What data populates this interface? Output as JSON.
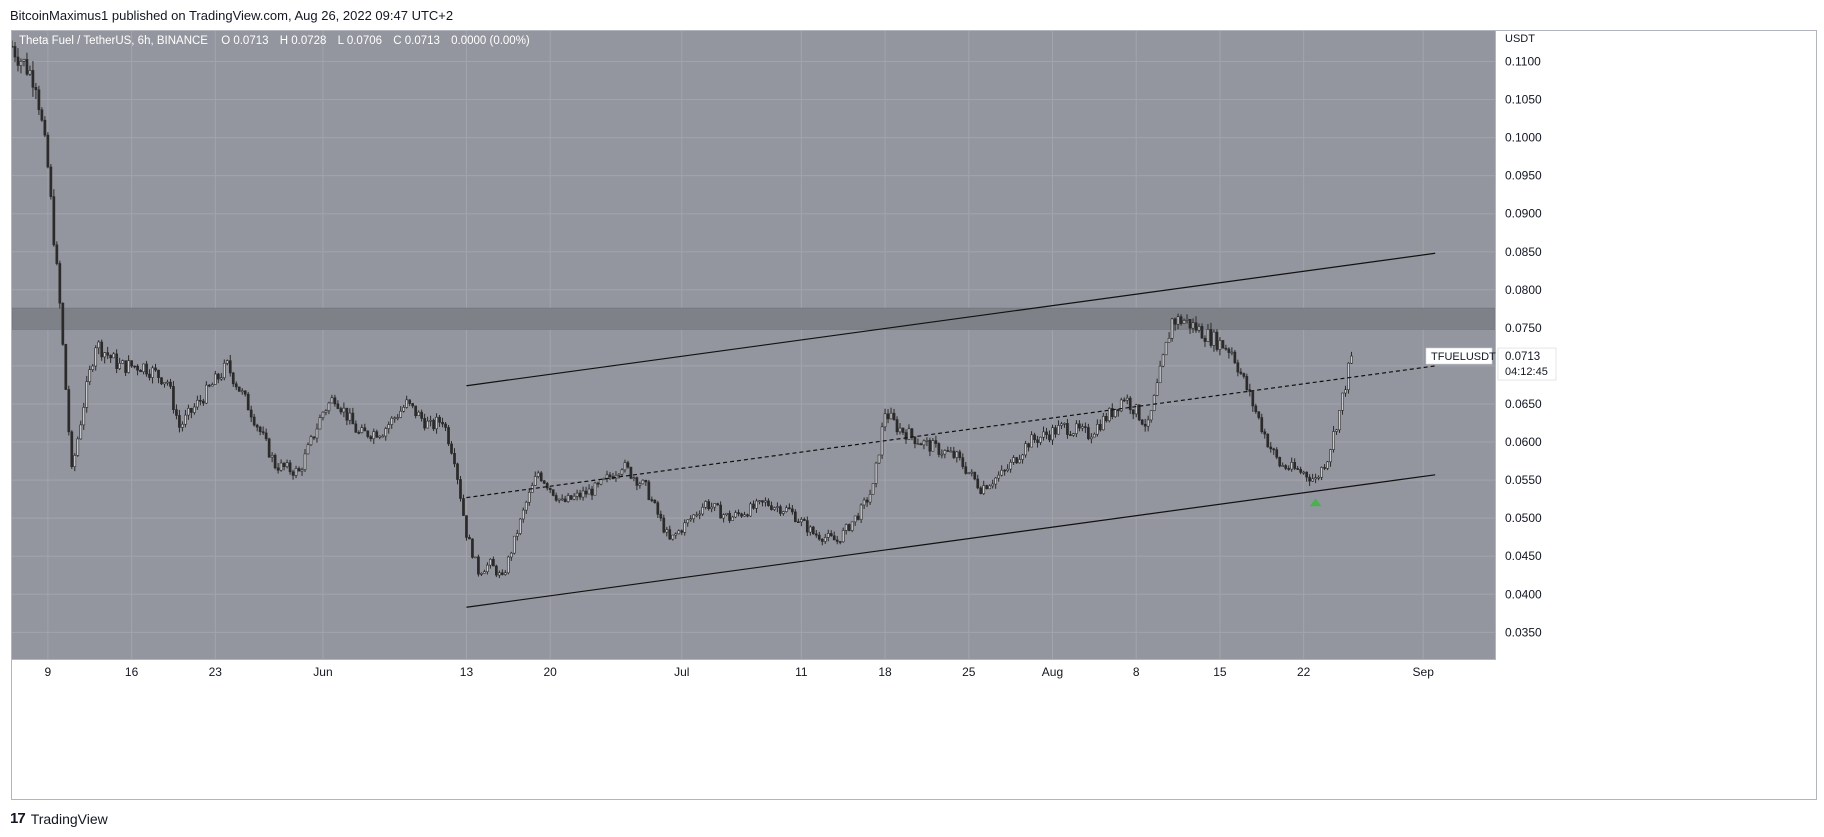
{
  "header": {
    "text": "BitcoinMaximus1 published on TradingView.com, Aug 26, 2022 09:47 UTC+2"
  },
  "footer": {
    "logo_glyph": "17",
    "brand": "TradingView"
  },
  "chart_data": {
    "type": "candlestick",
    "symbol_title": "Theta Fuel / TetherUS, 6h, BINANCE",
    "ohlc_labels": [
      "O",
      "H",
      "L",
      "C"
    ],
    "ohlc_values": [
      "0.0713",
      "0.0728",
      "0.0706",
      "0.0713"
    ],
    "change": "0.0000 (0.00%)",
    "currency_label": "USDT",
    "ylim": [
      0.0315,
      0.114
    ],
    "y_ticks": [
      0.11,
      0.105,
      0.1,
      0.095,
      0.09,
      0.085,
      0.08,
      0.075,
      0.07,
      0.065,
      0.06,
      0.055,
      0.05,
      0.045,
      0.04,
      0.035
    ],
    "y_tick_labels": [
      "0.1100",
      "0.1050",
      "0.1000",
      "0.0950",
      "0.0900",
      "0.0850",
      "0.0800",
      "0.0750",
      "0.0650",
      "0.0600",
      "0.0550",
      "0.0500",
      "0.0450",
      "0.0400",
      "0.0350"
    ],
    "x_range": [
      "2022-05-06",
      "2022-09-07"
    ],
    "x_ticks": [
      {
        "date": "2022-05-09",
        "label": "9"
      },
      {
        "date": "2022-05-16",
        "label": "16"
      },
      {
        "date": "2022-05-23",
        "label": "23"
      },
      {
        "date": "2022-06-01",
        "label": "Jun"
      },
      {
        "date": "2022-06-13",
        "label": "13"
      },
      {
        "date": "2022-06-20",
        "label": "20"
      },
      {
        "date": "2022-07-01",
        "label": "Jul"
      },
      {
        "date": "2022-07-11",
        "label": "11"
      },
      {
        "date": "2022-07-18",
        "label": "18"
      },
      {
        "date": "2022-07-25",
        "label": "25"
      },
      {
        "date": "2022-08-01",
        "label": "Aug"
      },
      {
        "date": "2022-08-08",
        "label": "8"
      },
      {
        "date": "2022-08-15",
        "label": "15"
      },
      {
        "date": "2022-08-22",
        "label": "22"
      },
      {
        "date": "2022-09-01",
        "label": "Sep"
      }
    ],
    "close_path": [
      {
        "date": "2022-05-06",
        "value": 0.112
      },
      {
        "date": "2022-05-08",
        "value": 0.1075
      },
      {
        "date": "2022-05-09",
        "value": 0.096
      },
      {
        "date": "2022-05-10",
        "value": 0.078
      },
      {
        "date": "2022-05-11",
        "value": 0.056
      },
      {
        "date": "2022-05-12",
        "value": 0.065
      },
      {
        "date": "2022-05-13",
        "value": 0.073
      },
      {
        "date": "2022-05-15",
        "value": 0.07
      },
      {
        "date": "2022-05-17",
        "value": 0.07
      },
      {
        "date": "2022-05-19",
        "value": 0.068
      },
      {
        "date": "2022-05-20",
        "value": 0.062
      },
      {
        "date": "2022-05-22",
        "value": 0.066
      },
      {
        "date": "2022-05-24",
        "value": 0.07
      },
      {
        "date": "2022-05-26",
        "value": 0.064
      },
      {
        "date": "2022-05-28",
        "value": 0.057
      },
      {
        "date": "2022-05-30",
        "value": 0.056
      },
      {
        "date": "2022-06-01",
        "value": 0.064
      },
      {
        "date": "2022-06-02",
        "value": 0.066
      },
      {
        "date": "2022-06-04",
        "value": 0.061
      },
      {
        "date": "2022-06-06",
        "value": 0.0615
      },
      {
        "date": "2022-06-08",
        "value": 0.065
      },
      {
        "date": "2022-06-10",
        "value": 0.062
      },
      {
        "date": "2022-06-11",
        "value": 0.063
      },
      {
        "date": "2022-06-12",
        "value": 0.058
      },
      {
        "date": "2022-06-13",
        "value": 0.048
      },
      {
        "date": "2022-06-14",
        "value": 0.043
      },
      {
        "date": "2022-06-15",
        "value": 0.044
      },
      {
        "date": "2022-06-16",
        "value": 0.042
      },
      {
        "date": "2022-06-18",
        "value": 0.052
      },
      {
        "date": "2022-06-19",
        "value": 0.056
      },
      {
        "date": "2022-06-21",
        "value": 0.052
      },
      {
        "date": "2022-06-24",
        "value": 0.054
      },
      {
        "date": "2022-06-26",
        "value": 0.057
      },
      {
        "date": "2022-06-28",
        "value": 0.054
      },
      {
        "date": "2022-06-30",
        "value": 0.047
      },
      {
        "date": "2022-07-03",
        "value": 0.052
      },
      {
        "date": "2022-07-05",
        "value": 0.05
      },
      {
        "date": "2022-07-08",
        "value": 0.052
      },
      {
        "date": "2022-07-10",
        "value": 0.051
      },
      {
        "date": "2022-07-12",
        "value": 0.048
      },
      {
        "date": "2022-07-14",
        "value": 0.047
      },
      {
        "date": "2022-07-16",
        "value": 0.051
      },
      {
        "date": "2022-07-17",
        "value": 0.054
      },
      {
        "date": "2022-07-18",
        "value": 0.064
      },
      {
        "date": "2022-07-19",
        "value": 0.062
      },
      {
        "date": "2022-07-21",
        "value": 0.06
      },
      {
        "date": "2022-07-24",
        "value": 0.058
      },
      {
        "date": "2022-07-26",
        "value": 0.054
      },
      {
        "date": "2022-07-28",
        "value": 0.056
      },
      {
        "date": "2022-07-30",
        "value": 0.06
      },
      {
        "date": "2022-08-02",
        "value": 0.062
      },
      {
        "date": "2022-08-04",
        "value": 0.061
      },
      {
        "date": "2022-08-06",
        "value": 0.064
      },
      {
        "date": "2022-08-07",
        "value": 0.066
      },
      {
        "date": "2022-08-09",
        "value": 0.062
      },
      {
        "date": "2022-08-10",
        "value": 0.069
      },
      {
        "date": "2022-08-11",
        "value": 0.076
      },
      {
        "date": "2022-08-12",
        "value": 0.076
      },
      {
        "date": "2022-08-14",
        "value": 0.074
      },
      {
        "date": "2022-08-16",
        "value": 0.072
      },
      {
        "date": "2022-08-17",
        "value": 0.068
      },
      {
        "date": "2022-08-19",
        "value": 0.06
      },
      {
        "date": "2022-08-20",
        "value": 0.057
      },
      {
        "date": "2022-08-22",
        "value": 0.056
      },
      {
        "date": "2022-08-23",
        "value": 0.055
      },
      {
        "date": "2022-08-24",
        "value": 0.058
      },
      {
        "date": "2022-08-25",
        "value": 0.064
      },
      {
        "date": "2022-08-26",
        "value": 0.0713
      }
    ],
    "resistance_zone": {
      "from": 0.0748,
      "to": 0.0776
    },
    "trend_lines": [
      {
        "name": "channel-top",
        "start": {
          "date": "2022-06-13",
          "value": 0.0674
        },
        "end": {
          "date": "2022-09-02",
          "value": 0.0848
        },
        "style": "solid"
      },
      {
        "name": "channel-middle",
        "start": {
          "date": "2022-06-13",
          "value": 0.0527
        },
        "end": {
          "date": "2022-09-02",
          "value": 0.07
        },
        "style": "dashed"
      },
      {
        "name": "channel-bottom",
        "start": {
          "date": "2022-06-13",
          "value": 0.0383
        },
        "end": {
          "date": "2022-09-02",
          "value": 0.0557
        },
        "style": "solid"
      }
    ],
    "markers": [
      {
        "name": "support-bounce-marker",
        "date": "2022-08-23",
        "value": 0.0521,
        "color": "#4caf50",
        "shape": "triangle-up"
      }
    ],
    "price_tag": {
      "symbol": "TFUELUSDT",
      "price": "0.0713",
      "countdown": "04:12:45",
      "value": 0.0713
    },
    "colors": {
      "plot_bg": "#94969f",
      "grid": "#a2a4ac",
      "candle": "#2a2a2a",
      "zone": "#7f8188",
      "axis_bg": "#ffffff",
      "axis_text": "#131722",
      "title_text": "#ffffff"
    }
  }
}
